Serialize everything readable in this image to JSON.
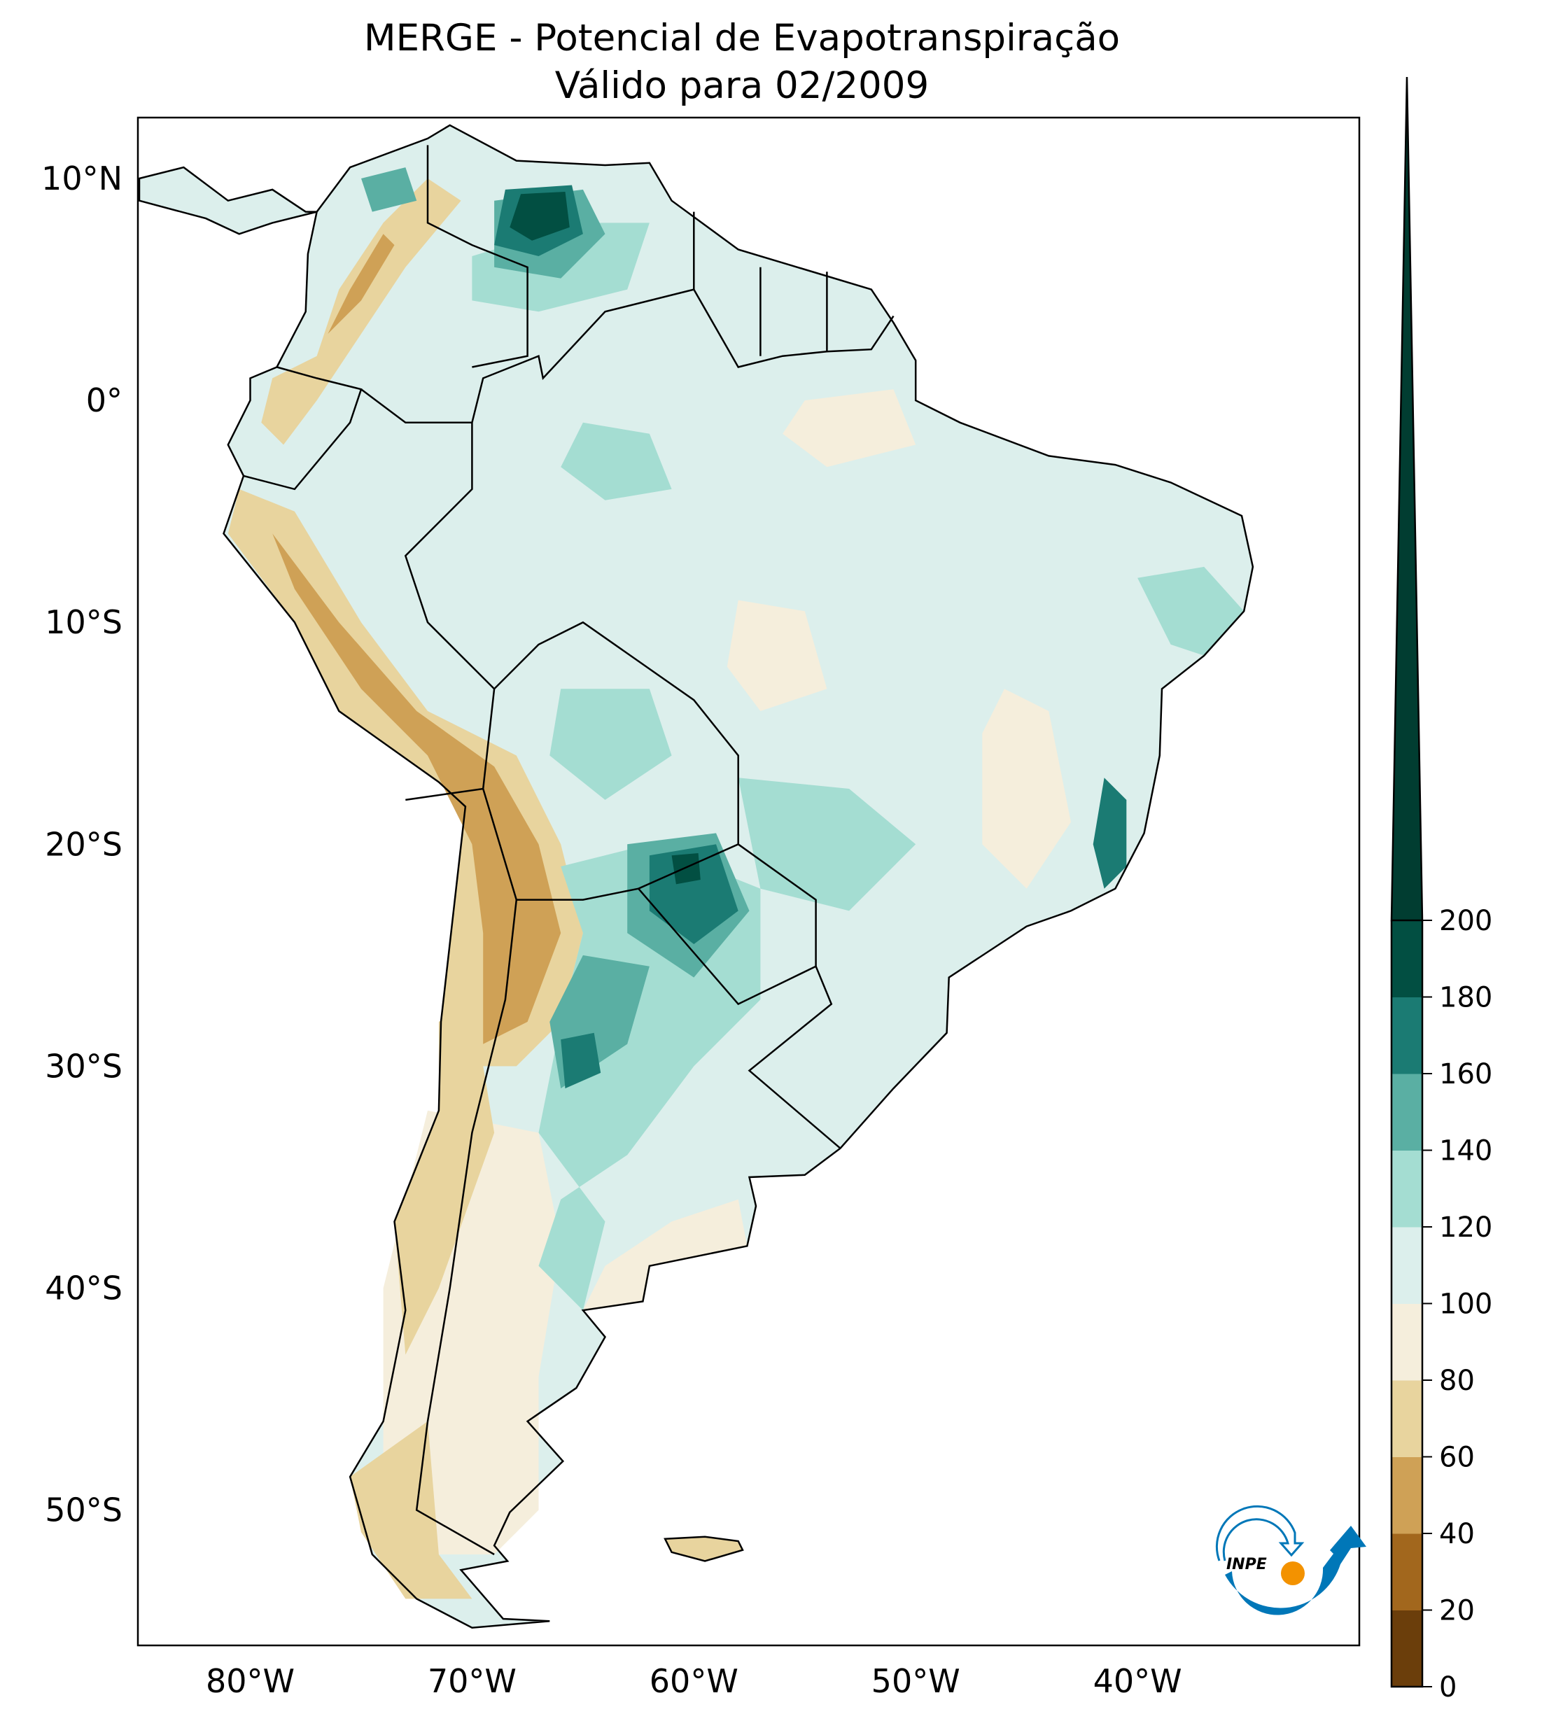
{
  "title": {
    "line1": "MERGE - Potencial de Evapotranspiração",
    "line2": "Válido para 02/2009"
  },
  "map": {
    "lon_labels": [
      "80°W",
      "70°W",
      "60°W",
      "50°W",
      "40°W"
    ],
    "lon_values": [
      -80,
      -70,
      -60,
      -50,
      -40
    ],
    "lat_labels": [
      "10°N",
      "0°",
      "10°S",
      "20°S",
      "30°S",
      "40°S",
      "50°S"
    ],
    "lat_values": [
      10,
      0,
      -10,
      -20,
      -30,
      -40,
      -50
    ],
    "extent": {
      "lon": [
        -85,
        -30
      ],
      "lat": [
        -56,
        12.7
      ]
    }
  },
  "colorbar": {
    "ticks": [
      "0",
      "20",
      "40",
      "60",
      "80",
      "100",
      "120",
      "140",
      "160",
      "180",
      "200"
    ],
    "levels": [
      0,
      20,
      40,
      60,
      80,
      100,
      120,
      140,
      160,
      180,
      200
    ],
    "colors": [
      "#6b3e0b",
      "#a2671d",
      "#cfa156",
      "#e8d49e",
      "#f5eedc",
      "#dcefec",
      "#a4ddd2",
      "#5aafa3",
      "#1b7b73",
      "#024f42"
    ],
    "extend_color": "#013d31",
    "extend": "max"
  },
  "logo": {
    "text": "INPE",
    "blue": "#0077b8",
    "orange": "#f39200"
  }
}
